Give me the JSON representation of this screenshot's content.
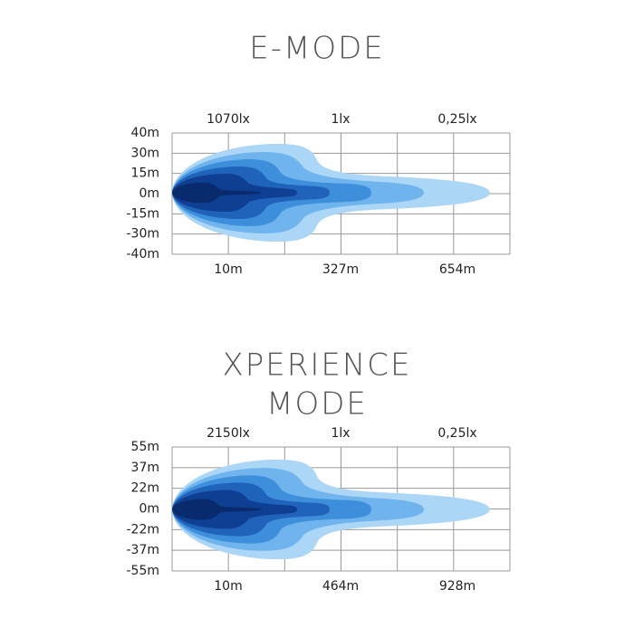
{
  "panels": [
    {
      "title_lines": [
        "E-MODE"
      ],
      "lux_labels": [
        "1070lx",
        "1lx",
        "0,25lx"
      ],
      "y_labels": [
        "40m",
        "30m",
        "15m",
        "0m",
        "-15m",
        "-30m",
        "-40m"
      ],
      "x_labels": [
        "10m",
        "327m",
        "654m"
      ]
    },
    {
      "title_lines": [
        "XPERIENCE",
        "MODE"
      ],
      "lux_labels": [
        "2150lx",
        "1lx",
        "0,25lx"
      ],
      "y_labels": [
        "55m",
        "37m",
        "22m",
        "0m",
        "-22m",
        "-37m",
        "-55m"
      ],
      "x_labels": [
        "10m",
        "464m",
        "928m"
      ]
    }
  ]
}
